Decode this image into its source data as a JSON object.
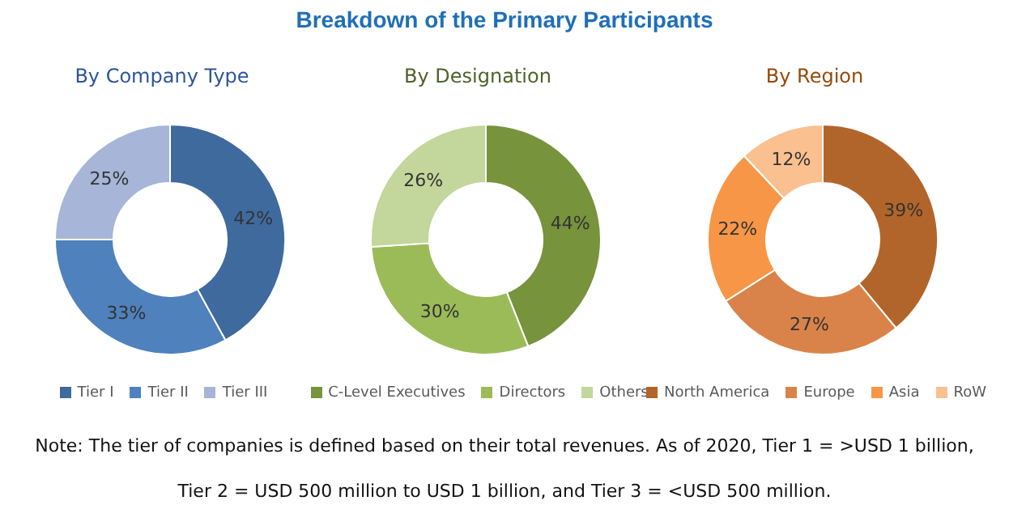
{
  "chart_data": [
    {
      "type": "donut",
      "subtitle": "By Company Type",
      "categories": [
        "Tier I",
        "Tier II",
        "Tier III"
      ],
      "values": [
        42,
        33,
        25
      ],
      "value_labels": [
        "42%",
        "33%",
        "25%"
      ],
      "colors": [
        "#3f6a9e",
        "#4f81bd",
        "#a6b5d8"
      ],
      "legend": "bottom"
    },
    {
      "type": "donut",
      "title": "Breakdown of the Primary Participants",
      "subtitle": "By Designation",
      "categories": [
        "C-Level Executives",
        "Directors",
        "Others"
      ],
      "values": [
        44,
        30,
        26
      ],
      "value_labels": [
        "44%",
        "30%",
        "26%"
      ],
      "colors": [
        "#77933c",
        "#9bbb59",
        "#c3d69b"
      ],
      "legend": "bottom",
      "annotations": [
        "Note: The tier of companies is defined based on their total revenues. As of 2020, Tier 1 = >USD 1 billion, Tier 2 = USD 500 million to USD 1 billion, and Tier 3 = <USD 500 million."
      ]
    },
    {
      "type": "donut",
      "subtitle": "By Region",
      "categories": [
        "North America",
        "Europe",
        "Asia",
        "RoW"
      ],
      "values": [
        39,
        27,
        22,
        12
      ],
      "value_labels": [
        "39%",
        "27%",
        "22%",
        "12%"
      ],
      "colors": [
        "#b2652a",
        "#d9834a",
        "#f79646",
        "#fac090"
      ],
      "legend": "bottom"
    }
  ]
}
